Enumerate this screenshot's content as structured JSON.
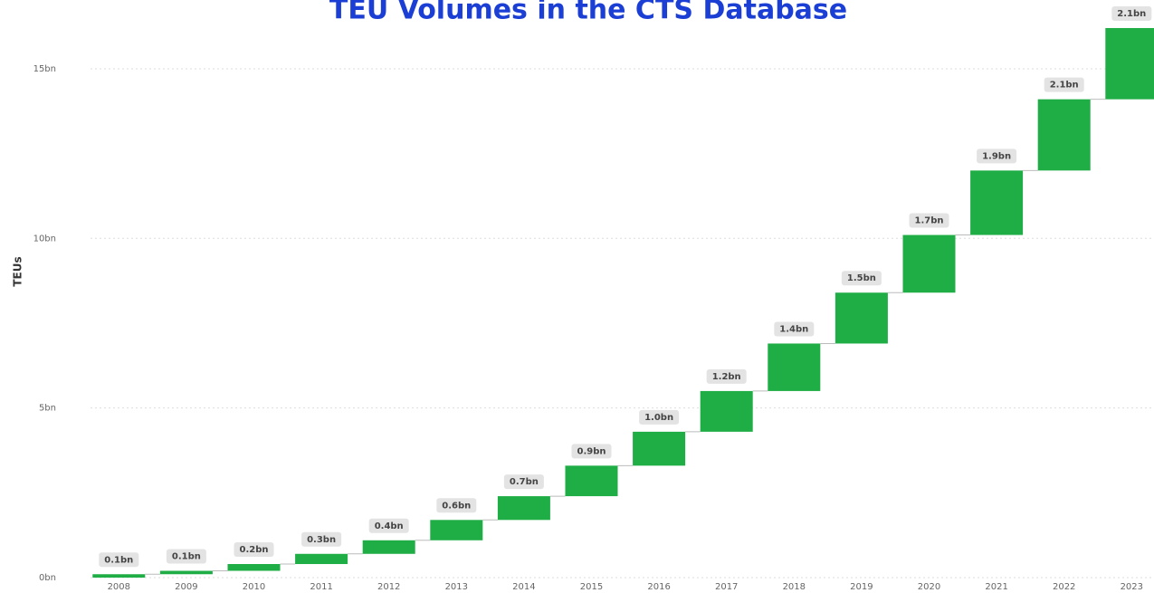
{
  "chart_data": {
    "type": "waterfall",
    "title": "TEU Volumes in the CTS Database",
    "y_label": "TEUs",
    "categories": [
      "2008",
      "2009",
      "2010",
      "2011",
      "2012",
      "2013",
      "2014",
      "2015",
      "2016",
      "2017",
      "2018",
      "2019",
      "2020",
      "2021",
      "2022",
      "2023"
    ],
    "values": [
      0.1,
      0.1,
      0.2,
      0.3,
      0.4,
      0.6,
      0.7,
      0.9,
      1.0,
      1.2,
      1.4,
      1.5,
      1.7,
      1.9,
      2.1,
      2.1
    ],
    "value_labels": [
      "0.1bn",
      "0.1bn",
      "0.2bn",
      "0.3bn",
      "0.4bn",
      "0.6bn",
      "0.7bn",
      "0.9bn",
      "1.0bn",
      "1.2bn",
      "1.4bn",
      "1.5bn",
      "1.7bn",
      "1.9bn",
      "2.1bn",
      "2.1bn"
    ],
    "color": "#1fad45",
    "ylim": [
      0,
      17
    ],
    "yticks": [
      {
        "value": 0,
        "label": "0bn"
      },
      {
        "value": 5,
        "label": "5bn"
      },
      {
        "value": 10,
        "label": "10bn"
      },
      {
        "value": 15,
        "label": "15bn"
      }
    ],
    "grid": true
  }
}
